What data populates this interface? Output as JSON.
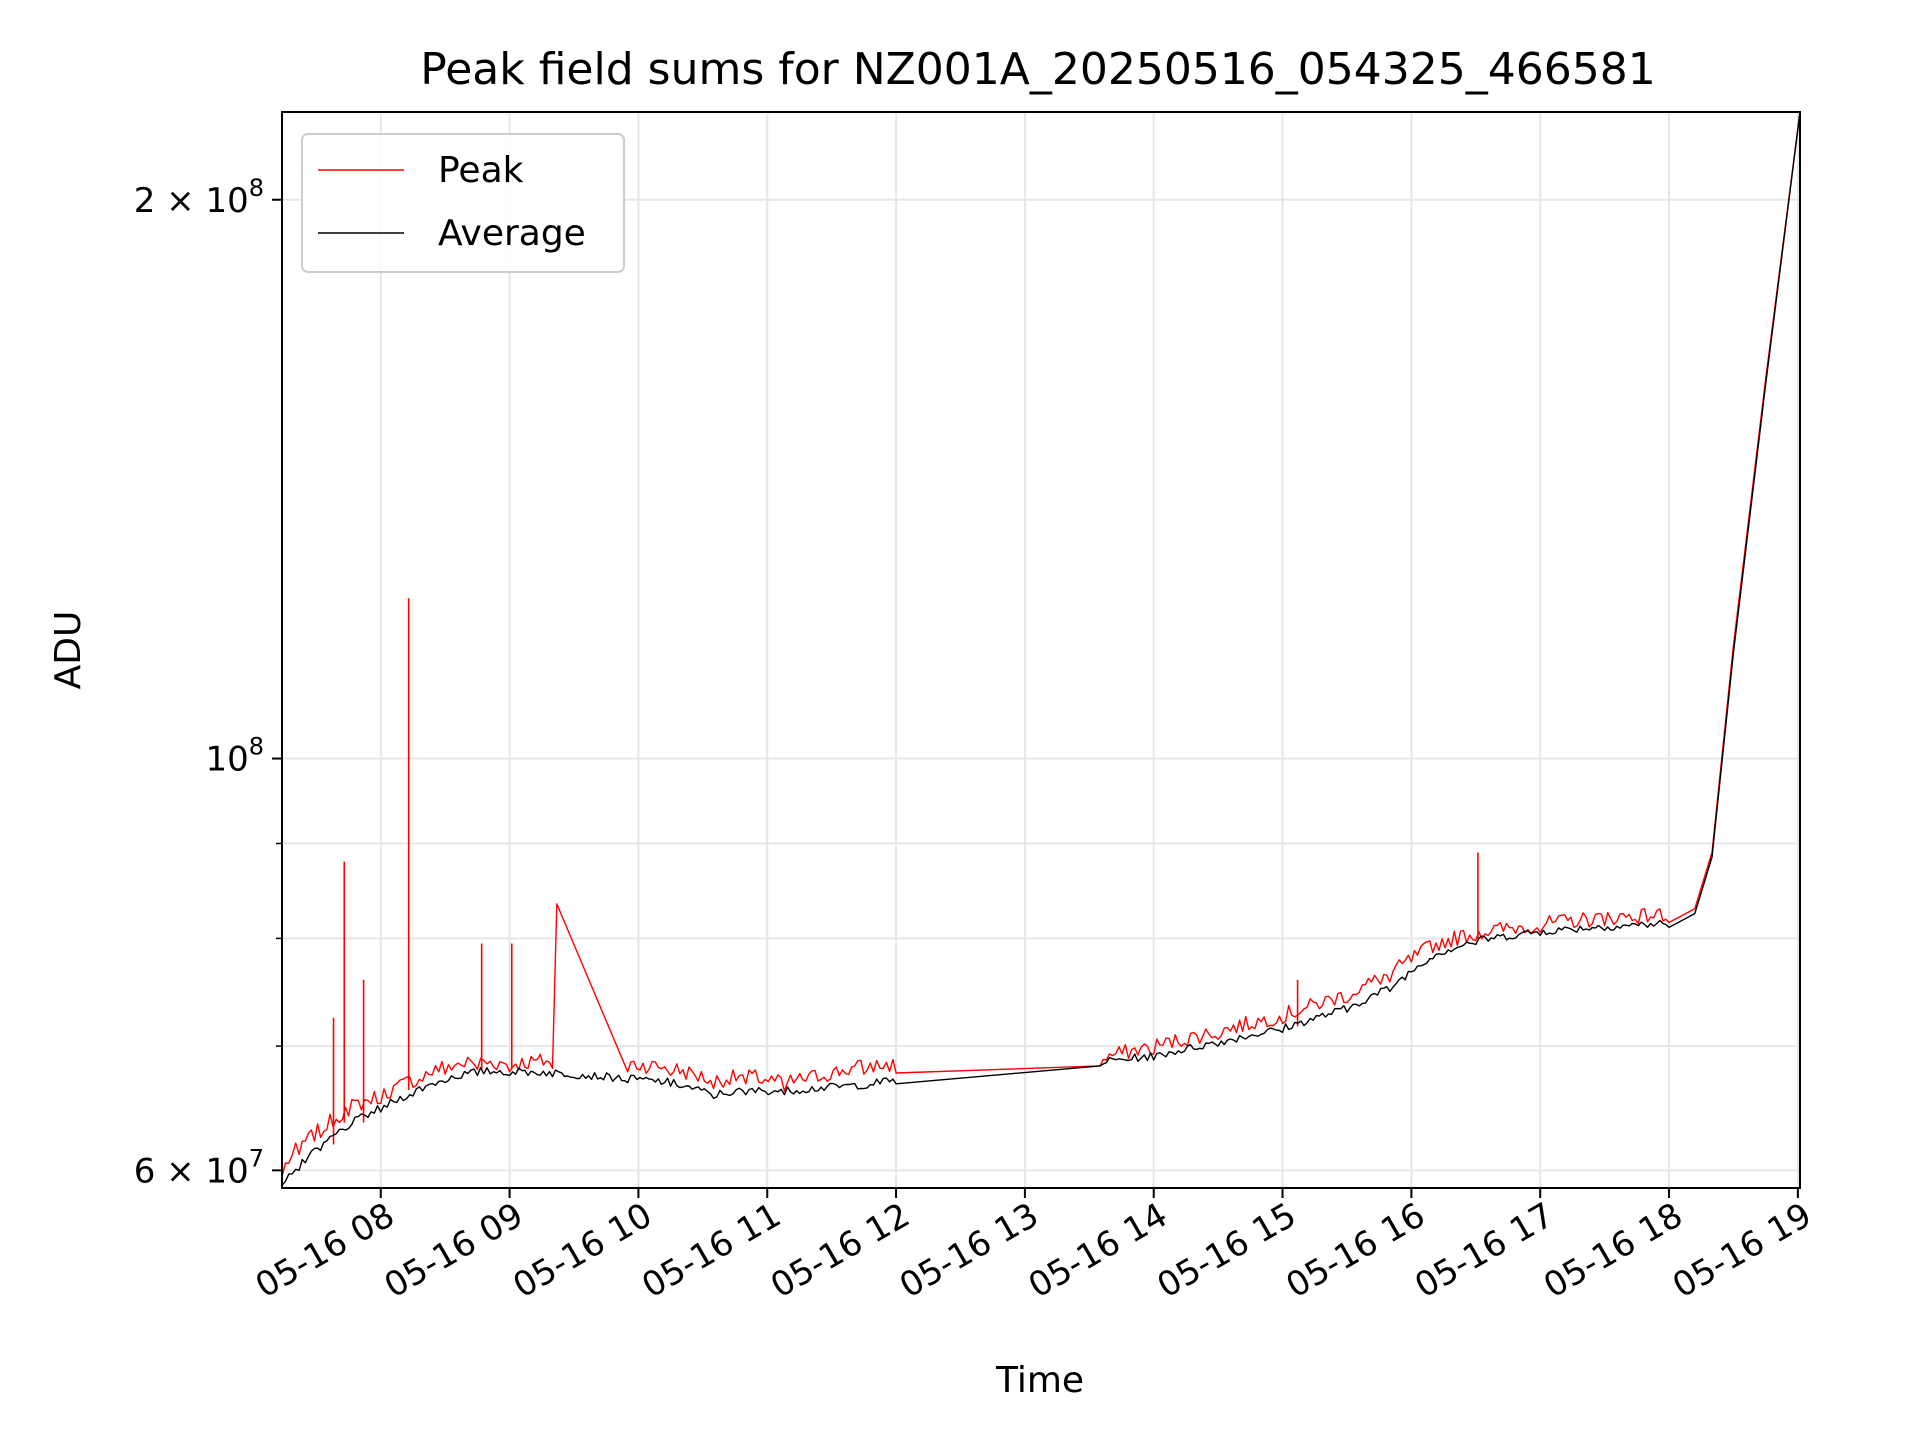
{
  "chart_data": {
    "type": "line",
    "title": "Peak field sums for NZ001A_20250516_054325_466581",
    "xlabel": "Time",
    "ylabel": "ADU",
    "yscale": "log",
    "ylim": [
      58700000,
      223000000
    ],
    "xlim": [
      "2025-05-16 07:14",
      "2025-05-16 19:01"
    ],
    "grid": true,
    "legend_position": "upper left",
    "x_ticks": [
      {
        "value": "2025-05-16 08:00",
        "label": "05-16 08"
      },
      {
        "value": "2025-05-16 09:00",
        "label": "05-16 09"
      },
      {
        "value": "2025-05-16 10:00",
        "label": "05-16 10"
      },
      {
        "value": "2025-05-16 11:00",
        "label": "05-16 11"
      },
      {
        "value": "2025-05-16 12:00",
        "label": "05-16 12"
      },
      {
        "value": "2025-05-16 13:00",
        "label": "05-16 13"
      },
      {
        "value": "2025-05-16 14:00",
        "label": "05-16 14"
      },
      {
        "value": "2025-05-16 15:00",
        "label": "05-16 15"
      },
      {
        "value": "2025-05-16 16:00",
        "label": "05-16 16"
      },
      {
        "value": "2025-05-16 17:00",
        "label": "05-16 17"
      },
      {
        "value": "2025-05-16 18:00",
        "label": "05-16 18"
      },
      {
        "value": "2025-05-16 19:00",
        "label": "05-16 19"
      }
    ],
    "y_ticks_major": [
      {
        "value": 60000000,
        "mant": "6",
        "times": "×",
        "base": "10",
        "exp": "7"
      },
      {
        "value": 100000000,
        "mant": "",
        "times": "",
        "base": "10",
        "exp": "8"
      },
      {
        "value": 200000000,
        "mant": "2",
        "times": "×",
        "base": "10",
        "exp": "8"
      }
    ],
    "y_minor_gridlines": [
      70000000,
      80000000,
      90000000
    ],
    "series": [
      {
        "name": "Peak",
        "color": "#ff0000",
        "points": [
          [
            "2025-05-16 07:14",
            59500000
          ],
          [
            "2025-05-16 07:22",
            61200000
          ],
          [
            "2025-05-16 07:32",
            62500000
          ],
          [
            "2025-05-16 07:45",
            64200000
          ],
          [
            "2025-05-16 08:00",
            65200000
          ],
          [
            "2025-05-16 08:15",
            66500000
          ],
          [
            "2025-05-16 08:30",
            67600000
          ],
          [
            "2025-05-16 08:45",
            68000000
          ],
          [
            "2025-05-16 09:00",
            67800000
          ],
          [
            "2025-05-16 09:20",
            68100000
          ],
          [
            "2025-05-16 09:22",
            83500000
          ],
          [
            "2025-05-16 09:55",
            67800000
          ],
          [
            "2025-05-16 10:15",
            67500000
          ],
          [
            "2025-05-16 10:35",
            66400000
          ],
          [
            "2025-05-16 10:50",
            66800000
          ],
          [
            "2025-05-16 11:08",
            66200000
          ],
          [
            "2025-05-16 11:45",
            67600000
          ],
          [
            "2025-05-16 12:00",
            67700000
          ],
          [
            "2025-05-16 13:35",
            68300000
          ],
          [
            "2025-05-16 14:00",
            69300000
          ],
          [
            "2025-05-16 14:30",
            70600000
          ],
          [
            "2025-05-16 15:00",
            72000000
          ],
          [
            "2025-05-16 15:30",
            73900000
          ],
          [
            "2025-05-16 15:50",
            75800000
          ],
          [
            "2025-05-16 16:10",
            78600000
          ],
          [
            "2025-05-16 16:30",
            79800000
          ],
          [
            "2025-05-16 17:00",
            80600000
          ],
          [
            "2025-05-16 17:30",
            81300000
          ],
          [
            "2025-05-16 18:00",
            81600000
          ],
          [
            "2025-05-16 18:12",
            83000000
          ],
          [
            "2025-05-16 18:20",
            89000000
          ],
          [
            "2025-05-16 18:30",
            115000000
          ],
          [
            "2025-05-16 18:45",
            160000000
          ],
          [
            "2025-05-16 19:01",
            223000000
          ]
        ],
        "spikes": [
          [
            "2025-05-16 07:38",
            72500000
          ],
          [
            "2025-05-16 07:43",
            88000000
          ],
          [
            "2025-05-16 07:52",
            76000000
          ],
          [
            "2025-05-16 08:13",
            122000000
          ],
          [
            "2025-05-16 08:47",
            79500000
          ],
          [
            "2025-05-16 09:01",
            79500000
          ],
          [
            "2025-05-16 15:07",
            76000000
          ],
          [
            "2025-05-16 16:31",
            89000000
          ]
        ]
      },
      {
        "name": "Average",
        "color": "#000000",
        "points": [
          [
            "2025-05-16 07:14",
            58900000
          ],
          [
            "2025-05-16 07:22",
            60000000
          ],
          [
            "2025-05-16 07:32",
            61500000
          ],
          [
            "2025-05-16 07:45",
            63200000
          ],
          [
            "2025-05-16 08:00",
            64500000
          ],
          [
            "2025-05-16 08:15",
            65800000
          ],
          [
            "2025-05-16 08:30",
            66900000
          ],
          [
            "2025-05-16 08:45",
            67500000
          ],
          [
            "2025-05-16 09:00",
            67500000
          ],
          [
            "2025-05-16 09:20",
            67400000
          ],
          [
            "2025-05-16 09:55",
            66900000
          ],
          [
            "2025-05-16 10:15",
            66600000
          ],
          [
            "2025-05-16 10:35",
            65600000
          ],
          [
            "2025-05-16 10:50",
            65900000
          ],
          [
            "2025-05-16 11:08",
            65900000
          ],
          [
            "2025-05-16 11:45",
            66400000
          ],
          [
            "2025-05-16 12:00",
            66800000
          ],
          [
            "2025-05-16 13:35",
            68300000
          ],
          [
            "2025-05-16 14:00",
            68800000
          ],
          [
            "2025-05-16 14:30",
            70000000
          ],
          [
            "2025-05-16 15:00",
            71200000
          ],
          [
            "2025-05-16 15:30",
            73000000
          ],
          [
            "2025-05-16 15:50",
            74900000
          ],
          [
            "2025-05-16 16:10",
            78000000
          ],
          [
            "2025-05-16 16:30",
            79400000
          ],
          [
            "2025-05-16 17:00",
            80300000
          ],
          [
            "2025-05-16 17:30",
            80800000
          ],
          [
            "2025-05-16 18:00",
            81100000
          ],
          [
            "2025-05-16 18:12",
            82500000
          ],
          [
            "2025-05-16 18:20",
            88500000
          ],
          [
            "2025-05-16 18:30",
            114000000
          ],
          [
            "2025-05-16 18:45",
            159000000
          ],
          [
            "2025-05-16 19:01",
            223000000
          ]
        ]
      }
    ]
  }
}
